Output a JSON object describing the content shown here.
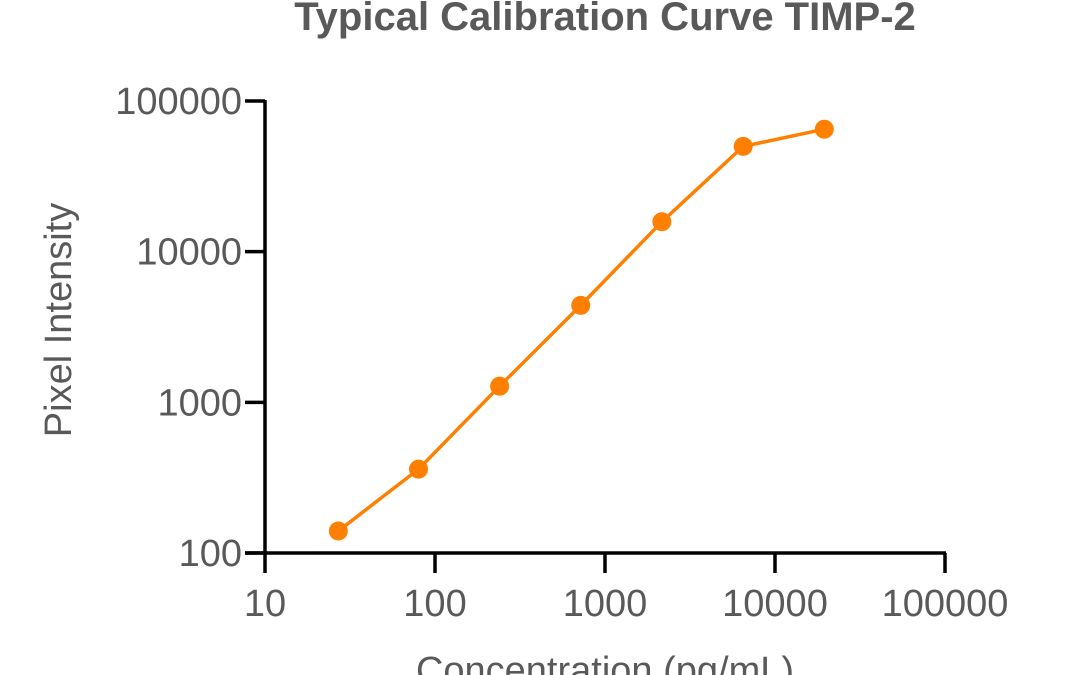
{
  "chart_data": {
    "type": "line",
    "title": "Typical Calibration Curve TIMP-2",
    "xlabel": "Concentration (pg/mL)",
    "ylabel": "Pixel Intensity",
    "x_scale": "log",
    "y_scale": "log",
    "xlim": [
      10,
      100000
    ],
    "ylim": [
      100,
      100000
    ],
    "x_ticks": [
      10,
      100,
      1000,
      10000,
      100000
    ],
    "x_tick_labels": [
      "10",
      "100",
      "1000",
      "10000",
      "100000"
    ],
    "y_ticks": [
      100,
      1000,
      10000,
      100000
    ],
    "y_tick_labels": [
      "100",
      "1000",
      "10000",
      "100000"
    ],
    "grid": false,
    "legend": "none",
    "series": [
      {
        "color": "#FF8000",
        "marker": "circle",
        "x": [
          27,
          80,
          240,
          720,
          2160,
          6500,
          19500
        ],
        "y": [
          140,
          360,
          1280,
          4400,
          15800,
          50000,
          65000
        ]
      }
    ]
  }
}
